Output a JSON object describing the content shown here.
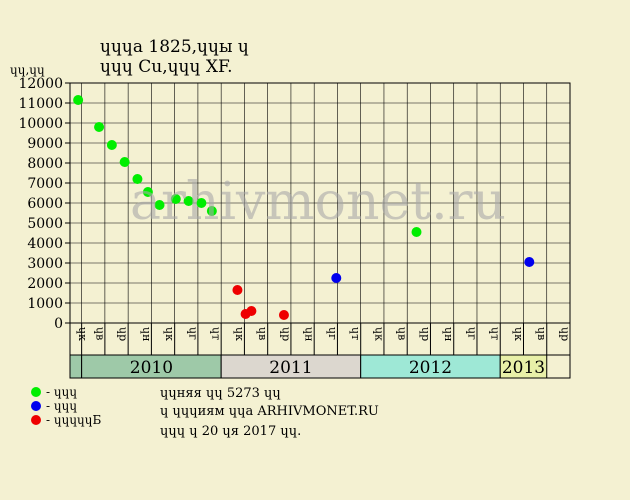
{
  "header": {
    "title_line1": "ɥɥɥа 1825,ɥɥы ɥ",
    "title_line2": "ɥɥɥ Cu,ɥɥɥ XF."
  },
  "watermark": "arhivmonet.ru",
  "chart_data": {
    "type": "scatter",
    "ylabel": "ɥɥ,ɥɥ",
    "ylim": [
      0,
      12000
    ],
    "yticks": [
      "0",
      "1000",
      "2000",
      "3000",
      "4000",
      "5000",
      "6000",
      "7000",
      "8000",
      "9000",
      "10000",
      "11000",
      "12000"
    ],
    "x_month_labels": [
      "ɥк",
      "ɥв",
      "ɥр",
      "ɥн",
      "ɥк",
      "ɥг",
      "ɥт",
      "ɥк",
      "ɥв",
      "ɥр",
      "ɥн",
      "ɥг",
      "ɥт",
      "ɥк",
      "ɥв",
      "ɥр",
      "ɥн",
      "ɥг",
      "ɥт",
      "ɥк",
      "ɥв",
      "ɥр"
    ],
    "years": [
      {
        "label": "",
        "start": 0,
        "end": 1,
        "color": "#9ec9a8"
      },
      {
        "label": "2010",
        "start": 1,
        "end": 7,
        "color": "#9ec9a8"
      },
      {
        "label": "2011",
        "start": 7,
        "end": 13,
        "color": "#dcd7cf"
      },
      {
        "label": "2012",
        "start": 13,
        "end": 19,
        "color": "#9ee8d6"
      },
      {
        "label": "2013",
        "start": 19,
        "end": 21,
        "color": "#e8f0a8"
      }
    ],
    "series": [
      {
        "name": "- ɥɥɥ",
        "color": "#00ee00",
        "points": [
          {
            "x": 0.35,
            "y": 11150
          },
          {
            "x": 1.25,
            "y": 9800
          },
          {
            "x": 1.8,
            "y": 8900
          },
          {
            "x": 2.35,
            "y": 8050
          },
          {
            "x": 2.9,
            "y": 7200
          },
          {
            "x": 3.35,
            "y": 6550
          },
          {
            "x": 3.85,
            "y": 5900
          },
          {
            "x": 4.55,
            "y": 6200
          },
          {
            "x": 5.1,
            "y": 6100
          },
          {
            "x": 5.65,
            "y": 6000
          },
          {
            "x": 6.1,
            "y": 5600
          },
          {
            "x": 14.9,
            "y": 4550
          }
        ]
      },
      {
        "name": "- ɥɥɥ",
        "color": "#0000ee",
        "points": [
          {
            "x": 11.45,
            "y": 2250
          },
          {
            "x": 19.75,
            "y": 3050
          }
        ]
      },
      {
        "name": "- ɥɥɥɥɥБ",
        "color": "#ee0000",
        "points": [
          {
            "x": 7.2,
            "y": 1650
          },
          {
            "x": 7.55,
            "y": 450
          },
          {
            "x": 7.8,
            "y": 600
          },
          {
            "x": 9.2,
            "y": 400
          }
        ]
      }
    ]
  },
  "footer": {
    "line1": "ɥɥняя ɥɥ 5273 ɥɥ",
    "line2": "ɥ ɥɥɥиям ɥɥа ARHIVMONET.RU",
    "line3": "ɥɥɥ ɥ 20 ɥя 2017 ɥɥ."
  }
}
